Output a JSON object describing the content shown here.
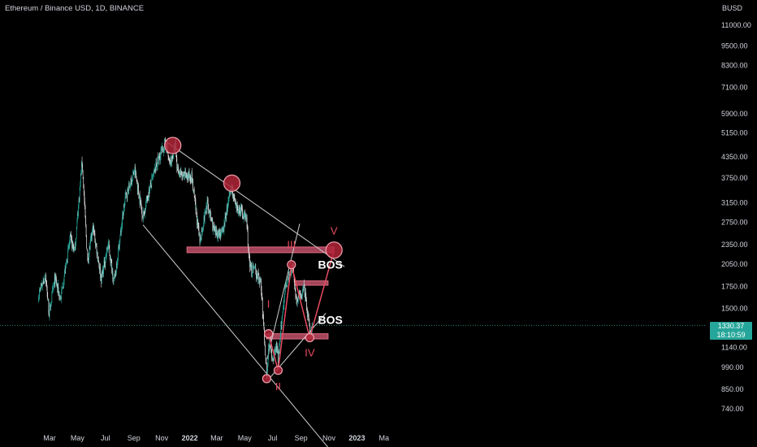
{
  "header": {
    "title": "Ethereum / Binance USD, 1D, BINANCE",
    "currency": "BUSD"
  },
  "price_badge": {
    "price": "1330.37",
    "countdown": "18:10:59"
  },
  "chart_data": {
    "type": "candlestick",
    "title": "Ethereum / Binance USD, 1D, BINANCE",
    "y_scale": "log",
    "ylim": [
      660,
      12500
    ],
    "y_ticks": [
      "11000.00",
      "9500.00",
      "8300.00",
      "7100.00",
      "5900.00",
      "5150.00",
      "4350.00",
      "3750.00",
      "3150.00",
      "2750.00",
      "2350.00",
      "2050.00",
      "1750.00",
      "1500.00",
      "1140.00",
      "990.00",
      "850.00",
      "740.00"
    ],
    "y_tick_values": [
      11000,
      9500,
      8300,
      7100,
      5900,
      5150,
      4350,
      3750,
      3150,
      2750,
      2350,
      2050,
      1750,
      1500,
      1140,
      990,
      850,
      740
    ],
    "x_ticks": [
      {
        "label": "Mar",
        "date": "2021-03-01",
        "bold": false
      },
      {
        "label": "May",
        "date": "2021-05-01",
        "bold": false
      },
      {
        "label": "Jul",
        "date": "2021-07-01",
        "bold": false
      },
      {
        "label": "Sep",
        "date": "2021-09-01",
        "bold": false
      },
      {
        "label": "Nov",
        "date": "2021-11-01",
        "bold": false
      },
      {
        "label": "2022",
        "date": "2022-01-01",
        "bold": true
      },
      {
        "label": "Mar",
        "date": "2022-03-01",
        "bold": false
      },
      {
        "label": "May",
        "date": "2022-05-01",
        "bold": false
      },
      {
        "label": "Jul",
        "date": "2022-07-01",
        "bold": false
      },
      {
        "label": "Sep",
        "date": "2022-09-01",
        "bold": false
      },
      {
        "label": "Nov",
        "date": "2022-11-01",
        "bold": false
      },
      {
        "label": "2023",
        "date": "2023-01-01",
        "bold": true
      },
      {
        "label": "Ma",
        "date": "2023-03-01",
        "bold": false
      }
    ],
    "last_price": 1330.37,
    "colors": {
      "up": "#26a69a",
      "down": "#d9d9d9",
      "markup": "#e84a5f",
      "zone_fill": "#c0506a",
      "trend": "#cfcfcf",
      "current_line": "#26a69a"
    },
    "anchors": [
      [
        "2021-02-05",
        1650
      ],
      [
        "2021-02-20",
        1900
      ],
      [
        "2021-02-28",
        1450
      ],
      [
        "2021-03-13",
        1850
      ],
      [
        "2021-03-25",
        1600
      ],
      [
        "2021-04-15",
        2450
      ],
      [
        "2021-04-25",
        2250
      ],
      [
        "2021-05-11",
        4250
      ],
      [
        "2021-05-23",
        2100
      ],
      [
        "2021-06-04",
        2650
      ],
      [
        "2021-06-22",
        1850
      ],
      [
        "2021-07-07",
        2350
      ],
      [
        "2021-07-20",
        1800
      ],
      [
        "2021-08-13",
        3250
      ],
      [
        "2021-09-03",
        3950
      ],
      [
        "2021-09-21",
        2850
      ],
      [
        "2021-10-01",
        3300
      ],
      [
        "2021-10-21",
        4150
      ],
      [
        "2021-11-10",
        4850
      ],
      [
        "2021-11-18",
        4100
      ],
      [
        "2021-12-01",
        4700
      ],
      [
        "2021-12-04",
        4050
      ],
      [
        "2021-12-15",
        3800
      ],
      [
        "2022-01-05",
        3800
      ],
      [
        "2022-01-23",
        2400
      ],
      [
        "2022-02-08",
        3150
      ],
      [
        "2022-02-24",
        2550
      ],
      [
        "2022-03-14",
        2550
      ],
      [
        "2022-04-02",
        3550
      ],
      [
        "2022-04-12",
        3000
      ],
      [
        "2022-04-22",
        3000
      ],
      [
        "2022-05-05",
        2800
      ],
      [
        "2022-05-12",
        2000
      ],
      [
        "2022-05-24",
        1950
      ],
      [
        "2022-06-05",
        1800
      ],
      [
        "2022-06-18",
        950
      ],
      [
        "2022-06-25",
        1250
      ],
      [
        "2022-06-30",
        1050
      ],
      [
        "2022-07-10",
        1150
      ],
      [
        "2022-07-13",
        1040
      ],
      [
        "2022-07-28",
        1750
      ],
      [
        "2022-08-14",
        2000
      ],
      [
        "2022-08-22",
        1580
      ],
      [
        "2022-09-08",
        1720
      ],
      [
        "2022-09-21",
        1240
      ],
      [
        "2022-09-26",
        1330
      ]
    ],
    "levels": [
      {
        "name": "resistance-zone",
        "low": 2220,
        "high": 2310,
        "from": "2021-12-26",
        "to": "2022-11-12"
      },
      {
        "name": "bos-upper",
        "low": 1765,
        "high": 1820,
        "from": "2022-08-18",
        "to": "2022-10-30"
      },
      {
        "name": "bos-lower",
        "low": 1210,
        "high": 1255,
        "from": "2022-06-18",
        "to": "2022-10-30"
      }
    ],
    "trendlines": [
      {
        "name": "upper-channel",
        "from": [
          "2021-11-06",
          4900
        ],
        "to": [
          "2022-12-05",
          2010
        ]
      },
      {
        "name": "lower-channel",
        "from": [
          "2021-09-21",
          2700
        ],
        "to": [
          "2022-11-15",
          530
        ]
      },
      {
        "name": "rising-lower",
        "from": [
          "2022-06-25",
          920
        ],
        "to": [
          "2022-10-25",
          1450
        ]
      },
      {
        "name": "rising-upper",
        "from": [
          "2022-06-19",
          1050
        ],
        "to": [
          "2022-08-29",
          2720
        ]
      }
    ],
    "pivots": [
      {
        "date": "2021-11-25",
        "price": 4720,
        "size": "large"
      },
      {
        "date": "2022-04-03",
        "price": 3620,
        "size": "large"
      },
      {
        "date": "2022-11-12",
        "price": 2260,
        "size": "large"
      },
      {
        "date": "2022-06-18",
        "price": 915,
        "size": "small"
      },
      {
        "date": "2022-06-22",
        "price": 1255,
        "size": "small"
      },
      {
        "date": "2022-07-13",
        "price": 970,
        "size": "small"
      },
      {
        "date": "2022-08-11",
        "price": 2040,
        "size": "small"
      },
      {
        "date": "2022-09-20",
        "price": 1220,
        "size": "small"
      }
    ],
    "wave_path": [
      [
        "2022-06-22",
        1255
      ],
      [
        "2022-07-13",
        970
      ],
      [
        "2022-08-11",
        2040
      ],
      [
        "2022-09-20",
        1220
      ],
      [
        "2022-11-12",
        2260
      ]
    ],
    "wave_labels": [
      {
        "text": "I",
        "date": "2022-06-22",
        "price": 1510
      },
      {
        "text": "II",
        "date": "2022-07-13",
        "price": 845
      },
      {
        "text": "III",
        "date": "2022-08-11",
        "price": 2290
      },
      {
        "text": "IV",
        "date": "2022-09-20",
        "price": 1070
      },
      {
        "text": "V",
        "date": "2022-11-12",
        "price": 2520
      }
    ],
    "bos_labels": [
      {
        "text": "BOS",
        "date": "2022-11-04",
        "price": 1985
      },
      {
        "text": "BOS",
        "date": "2022-11-04",
        "price": 1345
      }
    ]
  }
}
